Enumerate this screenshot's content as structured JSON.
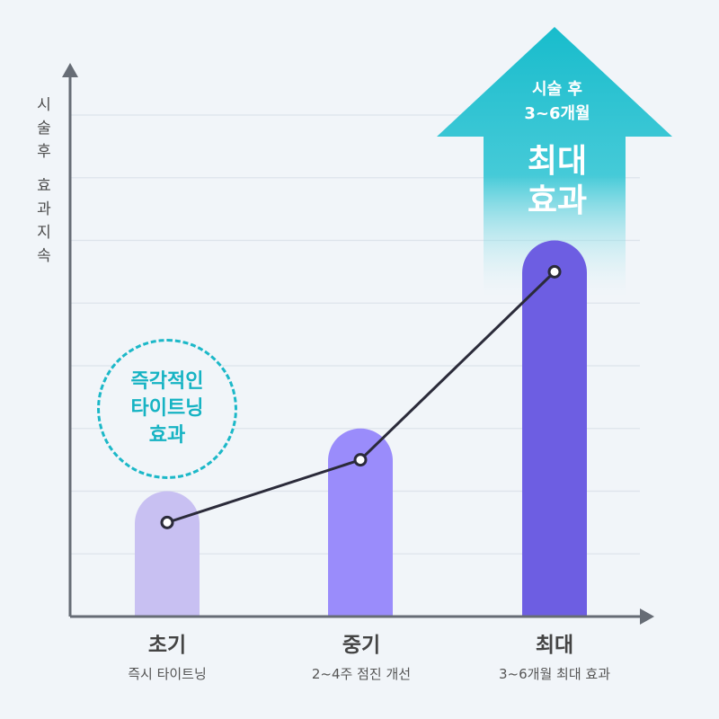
{
  "chart_data": {
    "type": "bar",
    "categories": [
      "초기",
      "중기",
      "최대"
    ],
    "category_subtitles": [
      "즉시 타이트닝",
      "2~4주 점진 개선",
      "3~6개월 최대 효과"
    ],
    "values": [
      2,
      3,
      6
    ],
    "line_values": [
      1.5,
      2.5,
      5.5
    ],
    "ylim": [
      0,
      8
    ],
    "ylabel": "시술 후 효과 지속",
    "grid": true,
    "bar_colors": [
      "#c8c0f2",
      "#9a8cfb",
      "#6d5ee2"
    ],
    "line_color": "#2b2b3a",
    "callout": {
      "text": "즉각적인\n타이트닝\n효과",
      "color": "#1cb8c8"
    },
    "arrow": {
      "subtitle": "시술 후\n3~6개월",
      "title": "최대\n효과",
      "color": "#1bbccd"
    }
  },
  "ylabel_chars": [
    "시",
    "술",
    "후",
    "",
    "효",
    "과",
    "지",
    "속"
  ]
}
